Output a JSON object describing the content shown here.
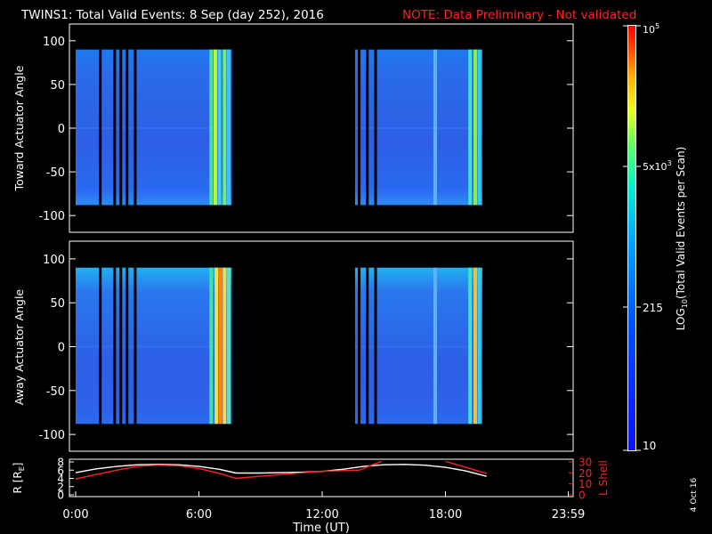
{
  "header": {
    "title": "TWINS1: Total Valid Events:  8 Sep (day 252), 2016",
    "note": "NOTE: Data Preliminary - Not validated"
  },
  "colors": {
    "background": "#000000",
    "axes": "#ffffff",
    "note": "#ff2020",
    "lshell": "#ff2020",
    "radius": "#ffffff"
  },
  "colorbar": {
    "label": "LOG10(Total Valid Events per Scan)",
    "label_prefix": "LOG",
    "label_sub": "10",
    "label_rest": "(Total Valid  Events per Scan)",
    "tick_10": "10",
    "tick_215": "215",
    "tick_5k_base": "5x10",
    "tick_5k_exp": "3",
    "tick_top_base": "10",
    "tick_top_exp": "5"
  },
  "footer": {
    "date_stamp": "4 Oct 16"
  },
  "chart_data": [
    {
      "type": "heatmap",
      "name": "toward",
      "ylabel": "Toward Actuator Angle",
      "yticks": [
        "100",
        "50",
        "0",
        "-50",
        "-100"
      ],
      "ylim": [
        -110,
        110
      ],
      "xlim_hours": [
        0,
        24
      ],
      "angle_range": [
        -88,
        90
      ],
      "data_intervals_hours": [
        [
          0,
          7.6
        ],
        [
          13.6,
          19.8
        ]
      ],
      "dark_stripes_hours": [
        1.2,
        1.9,
        2.2,
        2.5,
        2.9,
        13.8,
        14.2,
        14.6
      ],
      "bright_stripes_hours": [
        [
          6.6,
          "#44e0a0"
        ],
        [
          6.8,
          "#c0f040"
        ],
        [
          7.0,
          "#40d0e0"
        ],
        [
          7.25,
          "#70f070"
        ],
        [
          7.45,
          "#40c0ff"
        ],
        [
          17.5,
          "#60b0ff"
        ],
        [
          19.2,
          "#40e0d0"
        ],
        [
          19.45,
          "#90f040"
        ],
        [
          19.65,
          "#30d0e0"
        ]
      ],
      "colorscale": "log, 10 to 1e5 counts"
    },
    {
      "type": "heatmap",
      "name": "away",
      "ylabel": "Away Actuator Angle",
      "yticks": [
        "100",
        "50",
        "0",
        "-50",
        "-100"
      ],
      "ylim": [
        -110,
        110
      ],
      "xlim_hours": [
        0,
        24
      ],
      "angle_range": [
        -88,
        90
      ],
      "data_intervals_hours": [
        [
          0,
          7.6
        ],
        [
          13.6,
          19.8
        ]
      ],
      "dark_stripes_hours": [
        1.2,
        1.9,
        2.2,
        2.5,
        2.9,
        13.8,
        14.2,
        14.6
      ],
      "bright_stripes_hours": [
        [
          6.6,
          "#44e0a0"
        ],
        [
          6.85,
          "#f0e040"
        ],
        [
          7.05,
          "#ff8020"
        ],
        [
          7.25,
          "#f0e040"
        ],
        [
          7.45,
          "#60e0c0"
        ],
        [
          17.5,
          "#60b0ff"
        ],
        [
          19.2,
          "#40e0d0"
        ],
        [
          19.45,
          "#f0c040"
        ],
        [
          19.65,
          "#30d0e0"
        ]
      ],
      "colorscale": "log, 10 to 1e5 counts"
    },
    {
      "type": "line",
      "name": "ephemeris",
      "ylabel_left": "R [R",
      "ylabel_left_sub": "E",
      "ylabel_left_end": "]",
      "ylabel_right": "L Shell",
      "xlabel": "Time (UT)",
      "xticks": [
        "0:00",
        "6:00",
        "12:00",
        "18:00",
        "23:59"
      ],
      "yticks_left": [
        "8",
        "6",
        "4",
        "2",
        "0"
      ],
      "yticks_right": [
        "30",
        "20",
        "10",
        "0"
      ],
      "ylim_left": [
        0,
        8
      ],
      "ylim_right": [
        0,
        30
      ],
      "series": [
        {
          "name": "R",
          "axis": "left",
          "x": [
            0,
            1,
            2,
            3,
            4,
            5,
            6,
            7,
            7.8,
            9,
            10,
            11,
            12,
            13,
            14,
            15,
            16,
            17,
            18,
            19,
            20
          ],
          "y": [
            5.4,
            6.3,
            6.9,
            7.3,
            7.4,
            7.3,
            6.9,
            6.2,
            5.3,
            5.3,
            5.4,
            5.5,
            5.7,
            6.2,
            6.9,
            7.3,
            7.4,
            7.2,
            6.7,
            5.8,
            4.5
          ]
        },
        {
          "name": "L Shell",
          "axis": "right",
          "x": [
            0,
            1,
            2,
            3,
            4,
            5,
            6,
            7,
            7.8,
            9,
            10,
            11,
            12,
            13.8,
            14.4,
            14.9,
            17.6,
            18,
            19,
            20
          ],
          "y": [
            14.5,
            18.5,
            22.5,
            26,
            27,
            26.5,
            24,
            19.5,
            15,
            17,
            18.5,
            20,
            21.5,
            22.5,
            27,
            30.5,
            null,
            30.5,
            25,
            19.5
          ]
        }
      ]
    }
  ]
}
